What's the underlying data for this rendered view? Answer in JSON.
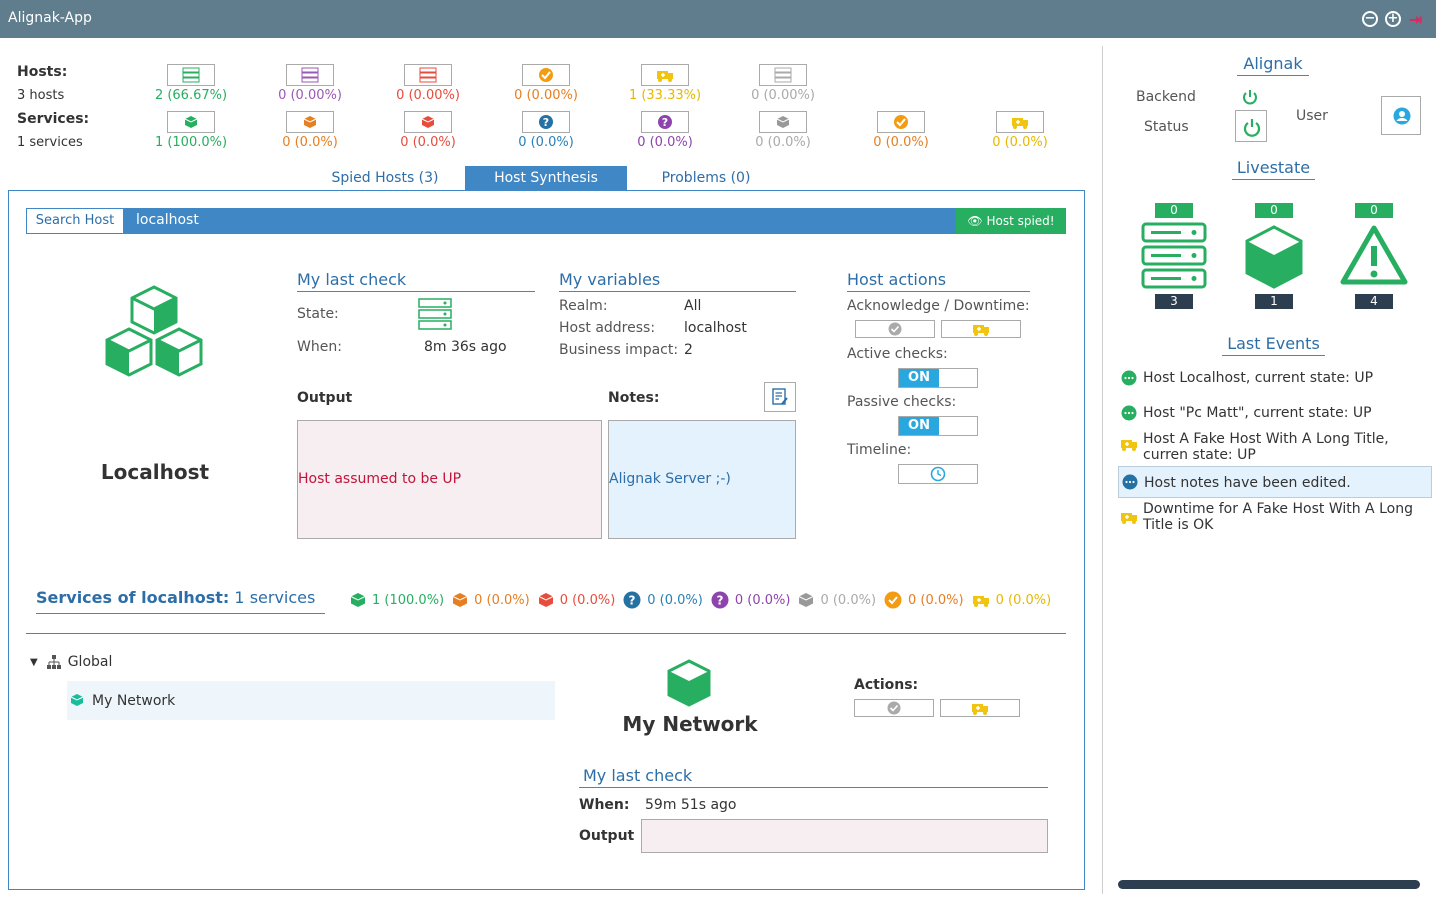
{
  "app": {
    "title": "Alignak-App"
  },
  "hosts": {
    "label": "Hosts:",
    "count": "3 hosts",
    "stats": [
      "2 (66.67%)",
      "0 (0.00%)",
      "0 (0.00%)",
      "0 (0.00%)",
      "1 (33.33%)",
      "0 (0.00%)"
    ]
  },
  "services": {
    "label": "Services:",
    "count": "1 services",
    "stats": [
      "1 (100.0%)",
      "0 (0.0%)",
      "0 (0.0%)",
      "0 (0.0%)",
      "0 (0.0%)",
      "0 (0.0%)",
      "0 (0.0%)",
      "0 (0.0%)"
    ]
  },
  "tabs": [
    {
      "label": "Spied Hosts (3)"
    },
    {
      "label": "Host Synthesis"
    },
    {
      "label": "Problems (0)"
    }
  ],
  "search": {
    "button": "Search Host",
    "value": "localhost",
    "spied": "Host spied!"
  },
  "host": {
    "name": "Localhost"
  },
  "last_check": {
    "title": "My last check",
    "state_label": "State:",
    "when_label": "When:",
    "when_value": "8m 36s ago"
  },
  "variables": {
    "title": "My variables",
    "realm_label": "Realm:",
    "realm": "All",
    "address_label": "Host address:",
    "address": "localhost",
    "impact_label": "Business impact:",
    "impact": "2"
  },
  "host_actions": {
    "title": "Host actions",
    "ack_label": "Acknowledge / Downtime:",
    "active_label": "Active checks:",
    "active": "ON",
    "passive_label": "Passive checks:",
    "passive": "ON",
    "timeline_label": "Timeline:"
  },
  "output": {
    "label": "Output",
    "text": "Host assumed to be UP"
  },
  "notes": {
    "label": "Notes:",
    "text": "Alignak Server ;-)"
  },
  "svc_section": {
    "title": "Services of localhost:",
    "count": "1 services",
    "stats": [
      "1 (100.0%)",
      "0 (0.0%)",
      "0 (0.0%)",
      "0 (0.0%)",
      "0 (0.0%)",
      "0 (0.0%)",
      "0 (0.0%)",
      "0 (0.0%)"
    ]
  },
  "tree": {
    "root": "Global",
    "child": "My Network"
  },
  "svc_detail": {
    "name": "My Network",
    "actions_label": "Actions:",
    "last_check_title": "My last check",
    "when_label": "When:",
    "when_value": "59m 51s ago",
    "output_label": "Output"
  },
  "right": {
    "alignak_title": "Alignak",
    "backend_label": "Backend",
    "status_label": "Status",
    "user_label": "User",
    "livestate_title": "Livestate",
    "livestate": [
      {
        "top": "0",
        "bottom": "3"
      },
      {
        "top": "0",
        "bottom": "1"
      },
      {
        "top": "0",
        "bottom": "4"
      }
    ],
    "events_title": "Last Events",
    "events": [
      "Host Localhost, current state: UP",
      "Host \"Pc Matt\", current state: UP",
      "Host A Fake Host With A Long Title, curren state: UP",
      "Host notes have been edited.",
      "Downtime for A Fake Host With A Long Title is OK"
    ]
  },
  "colors": {
    "accent": "#3f88c5",
    "titlebar": "#5f7d8c",
    "ok": "#27ae60",
    "warning": "#e67e22",
    "critical": "#e74c3c",
    "unknown": "#2980b9",
    "unreachable": "#9b59b6",
    "downtime": "#e6b800"
  }
}
